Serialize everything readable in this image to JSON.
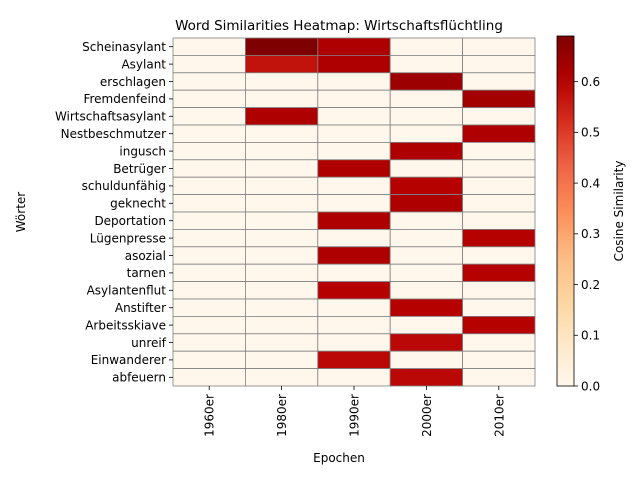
{
  "chart_data": {
    "type": "heatmap",
    "title": "Word Similarities Heatmap: Wirtschaftsflüchtling",
    "xlabel": "Epochen",
    "ylabel": "Wörter",
    "x_categories": [
      "1960er",
      "1980er",
      "1990er",
      "2000er",
      "2010er"
    ],
    "y_categories": [
      "Scheinasylant",
      "Asylant",
      "erschlagen",
      "Fremdenfeind",
      "Wirtschaftsasylant",
      "Nestbeschmutzer",
      "ingusch",
      "Betrüger",
      "schuldunfähig",
      "geknecht",
      "Deportation",
      "Lügenpresse",
      "asozial",
      "tarnen",
      "Asylantenflut",
      "Anstifter",
      "Arbeitsskiave",
      "unreif",
      "Einwanderer",
      "abfeuern"
    ],
    "values": [
      [
        0,
        0.69,
        0.61,
        0,
        0
      ],
      [
        0,
        0.57,
        0.61,
        0,
        0
      ],
      [
        0,
        0,
        0,
        0.64,
        0
      ],
      [
        0,
        0,
        0,
        0,
        0.63
      ],
      [
        0,
        0.61,
        0,
        0,
        0
      ],
      [
        0,
        0,
        0,
        0,
        0.61
      ],
      [
        0,
        0,
        0,
        0.61,
        0
      ],
      [
        0,
        0,
        0.61,
        0,
        0
      ],
      [
        0,
        0,
        0,
        0.6,
        0
      ],
      [
        0,
        0,
        0,
        0.61,
        0
      ],
      [
        0,
        0,
        0.61,
        0,
        0
      ],
      [
        0,
        0,
        0,
        0,
        0.6
      ],
      [
        0,
        0,
        0.61,
        0,
        0
      ],
      [
        0,
        0,
        0,
        0,
        0.6
      ],
      [
        0,
        0,
        0.6,
        0,
        0
      ],
      [
        0,
        0,
        0,
        0.6,
        0
      ],
      [
        0,
        0,
        0,
        0,
        0.6
      ],
      [
        0,
        0,
        0,
        0.59,
        0
      ],
      [
        0,
        0,
        0.59,
        0,
        0
      ],
      [
        0,
        0,
        0,
        0.59,
        0
      ]
    ],
    "colormap": "OrRd",
    "vmin": 0,
    "vmax": 0.69,
    "colorbar_label": "Cosine Similarity",
    "colorbar_ticks": [
      "0.0",
      "0.1",
      "0.2",
      "0.3",
      "0.4",
      "0.5",
      "0.6"
    ],
    "cell_edge_color": "#808080"
  }
}
